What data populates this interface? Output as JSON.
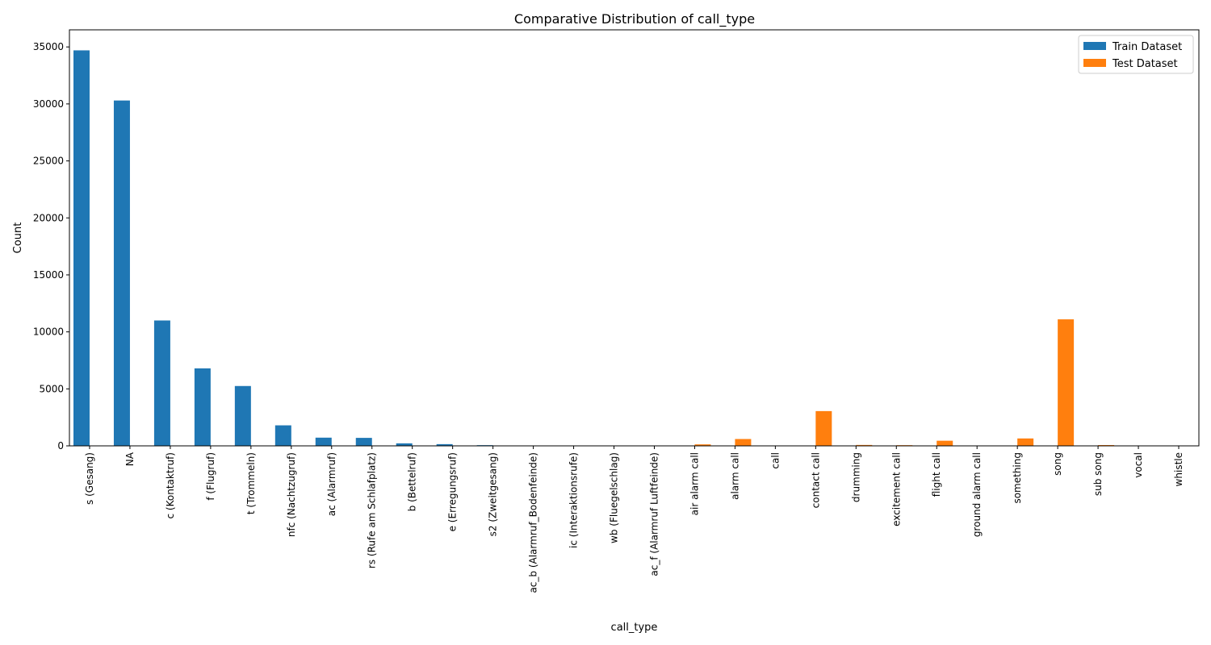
{
  "chart_data": {
    "type": "bar",
    "title": "Comparative Distribution of call_type",
    "xlabel": "call_type",
    "ylabel": "Count",
    "ylim": [
      0,
      36500
    ],
    "yticks": [
      0,
      5000,
      10000,
      15000,
      20000,
      25000,
      30000,
      35000
    ],
    "grid": false,
    "legend_position": "top-right",
    "categories": [
      "s (Gesang)",
      "NA",
      "c (Kontaktruf)",
      "f (Flugruf)",
      "t (Trommeln)",
      "nfc (Nachtzugruf)",
      "ac (Alarmruf)",
      "rs (Rufe am Schlafplatz)",
      "b (Bettelruf)",
      "e (Erregungsruf)",
      "s2 (Zweitgesang)",
      "ac_b (Alarmruf_Bodenfeinde)",
      "ic (Interaktionsrufe)",
      "wb (Fluegelschlag)",
      "ac_f (Alarmruf Luftfeinde)",
      "air alarm call",
      "alarm call",
      "call",
      "contact call",
      "drumming",
      "excitement call",
      "flight call",
      "ground alarm call",
      "something",
      "song",
      "sub song",
      "vocal",
      "whistle"
    ],
    "series": [
      {
        "name": "Train Dataset",
        "color": "#1f77b4",
        "values": [
          34700,
          30300,
          11000,
          6800,
          5250,
          1800,
          720,
          700,
          220,
          150,
          60,
          15,
          10,
          8,
          5,
          0,
          0,
          0,
          0,
          0,
          0,
          0,
          0,
          0,
          0,
          0,
          0,
          0
        ]
      },
      {
        "name": "Test Dataset",
        "color": "#ff7f0e",
        "values": [
          0,
          0,
          0,
          0,
          0,
          0,
          0,
          0,
          0,
          0,
          0,
          0,
          0,
          0,
          0,
          130,
          600,
          5,
          3050,
          80,
          60,
          450,
          5,
          650,
          11100,
          70,
          3,
          3
        ]
      }
    ]
  }
}
